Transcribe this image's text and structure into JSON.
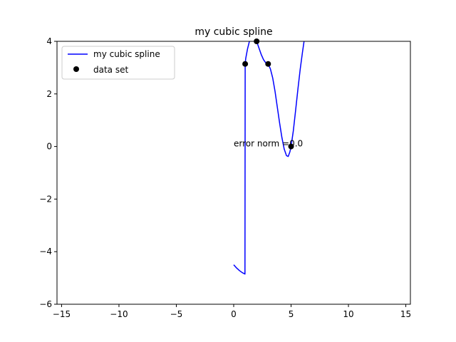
{
  "chart_data": {
    "type": "line",
    "title": "my cubic spline",
    "xlabel": "",
    "ylabel": "",
    "xlim": [
      -15.4,
      15.4
    ],
    "ylim": [
      -6,
      4
    ],
    "xticks": [
      -15,
      -10,
      -5,
      0,
      5,
      10,
      15
    ],
    "xtick_labels": [
      "−15",
      "−10",
      "−5",
      "0",
      "5",
      "10",
      "15"
    ],
    "yticks": [
      -6,
      -4,
      -2,
      0,
      2,
      4
    ],
    "ytick_labels": [
      "−6",
      "−4",
      "−2",
      "0",
      "2",
      "4"
    ],
    "grid": false,
    "legend": {
      "placement": "upper-left"
    },
    "series": [
      {
        "name": "my cubic spline",
        "kind": "line",
        "color": "#0000ff",
        "x": [
          0,
          0.25,
          0.5,
          0.75,
          0.98,
          1.0,
          1.05,
          1.2,
          1.4,
          1.6,
          1.8,
          2.0,
          2.2,
          2.4,
          2.6,
          2.8,
          3.0,
          3.2,
          3.4,
          3.6,
          3.8,
          4.0,
          4.2,
          4.4,
          4.6,
          4.75,
          4.9,
          5.0,
          5.2,
          5.4,
          5.6,
          5.8,
          6.0,
          6.2,
          6.35
        ],
        "y": [
          -4.5,
          -4.62,
          -4.72,
          -4.8,
          -4.85,
          3.14,
          3.35,
          3.7,
          4.05,
          4.28,
          4.25,
          4.0,
          3.75,
          3.5,
          3.3,
          3.18,
          3.14,
          2.95,
          2.6,
          2.1,
          1.5,
          0.9,
          0.35,
          -0.1,
          -0.35,
          -0.38,
          -0.2,
          0.0,
          0.6,
          1.4,
          2.2,
          2.95,
          3.6,
          4.2,
          4.6
        ]
      },
      {
        "name": "data set",
        "kind": "scatter",
        "color": "#000000",
        "x": [
          1,
          2,
          3,
          5
        ],
        "y": [
          3.14,
          4.0,
          3.14,
          0.0
        ]
      }
    ],
    "annotations": [
      {
        "text": "error norm =0.0",
        "x": 0.0,
        "y": 0.0
      }
    ]
  }
}
